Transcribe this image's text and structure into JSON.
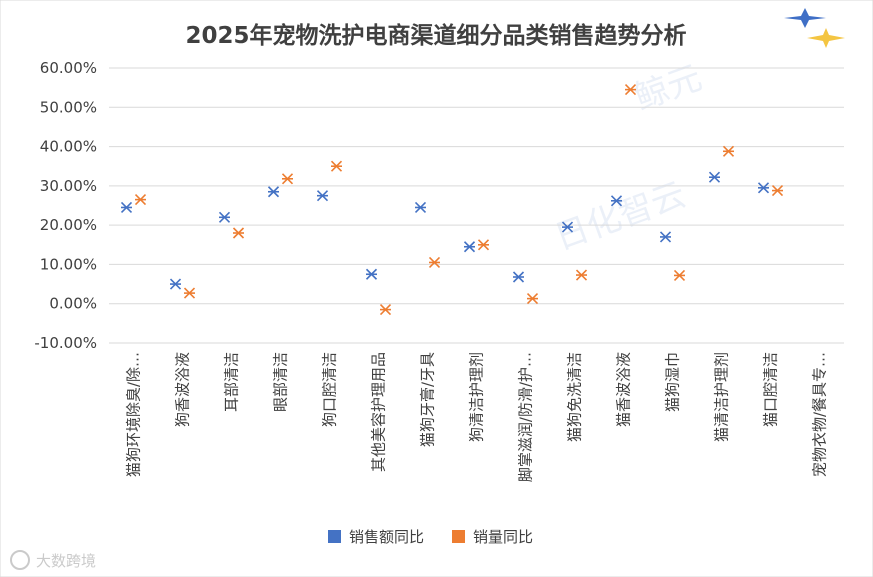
{
  "chart_data": {
    "type": "scatter",
    "title": "2025年宠物洗护电商渠道细分品类销售趋势分析",
    "xlabel": "",
    "ylabel": "",
    "ylim": [
      -0.1,
      0.6
    ],
    "yticks": [
      -0.1,
      0.0,
      0.1,
      0.2,
      0.3,
      0.4,
      0.5,
      0.6
    ],
    "ytick_labels": [
      "-10.00%",
      "0.00%",
      "10.00%",
      "20.00%",
      "30.00%",
      "40.00%",
      "50.00%",
      "60.00%"
    ],
    "grid": true,
    "legend_position": "bottom",
    "categories": [
      "猫狗环境除臭/除…",
      "狗香波浴液",
      "耳部清洁",
      "眼部清洁",
      "狗口腔清洁",
      "其他美容护理用品",
      "猫狗牙膏/牙具",
      "狗清洁护理剂",
      "脚掌滋润/防滑/护…",
      "猫狗免洗清洁",
      "猫香波浴液",
      "猫狗湿巾",
      "猫清洁护理剂",
      "猫口腔清洁",
      "宠物衣物/餐具专…"
    ],
    "series": [
      {
        "name": "销售额同比",
        "color": "#4472c4",
        "values": [
          0.245,
          0.05,
          0.22,
          0.285,
          0.275,
          0.075,
          0.245,
          0.145,
          0.068,
          0.195,
          0.262,
          0.17,
          0.322,
          0.295,
          null
        ]
      },
      {
        "name": "销量同比",
        "color": "#ed7d31",
        "values": [
          0.265,
          0.027,
          0.18,
          0.318,
          0.35,
          -0.015,
          0.105,
          0.15,
          0.013,
          0.073,
          0.545,
          0.072,
          0.388,
          0.288,
          null
        ]
      }
    ]
  },
  "watermark": {
    "brand": "鲸元",
    "logo_text": "日化智云",
    "footer_logo": "大数跨境"
  }
}
